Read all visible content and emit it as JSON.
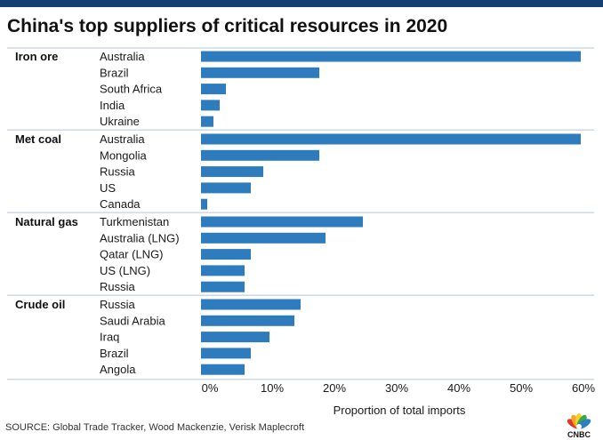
{
  "title": "China's top suppliers of critical resources in 2020",
  "source": "SOURCE: Global Trade Tracker, Wood Mackenzie, Verisk Maplecroft",
  "logo": {
    "icon": "peacock-icon",
    "text": "CNBC"
  },
  "colors": {
    "bar": "#2e7bbd",
    "divider": "#b8c4d6",
    "topbar": "#163f74"
  },
  "chart_data": {
    "type": "bar",
    "orientation": "horizontal",
    "title": "China's top suppliers of critical resources in 2020",
    "xlabel": "Proportion of total imports",
    "xlim": [
      0,
      62
    ],
    "xticks": [
      0,
      10,
      20,
      30,
      40,
      50,
      60
    ],
    "xtick_labels": [
      "0%",
      "10%",
      "20%",
      "30%",
      "40%",
      "50%",
      "60%"
    ],
    "groups": [
      {
        "name": "Iron ore",
        "items": [
          {
            "label": "Australia",
            "value": 61
          },
          {
            "label": "Brazil",
            "value": 19
          },
          {
            "label": "South Africa",
            "value": 4
          },
          {
            "label": "India",
            "value": 3
          },
          {
            "label": "Ukraine",
            "value": 2
          }
        ]
      },
      {
        "name": "Met coal",
        "items": [
          {
            "label": "Australia",
            "value": 61
          },
          {
            "label": "Mongolia",
            "value": 19
          },
          {
            "label": "Russia",
            "value": 10
          },
          {
            "label": "US",
            "value": 8
          },
          {
            "label": "Canada",
            "value": 1
          }
        ]
      },
      {
        "name": "Natural gas",
        "items": [
          {
            "label": "Turkmenistan",
            "value": 26
          },
          {
            "label": "Australia (LNG)",
            "value": 20
          },
          {
            "label": "Qatar (LNG)",
            "value": 8
          },
          {
            "label": "US (LNG)",
            "value": 7
          },
          {
            "label": "Russia",
            "value": 7
          }
        ]
      },
      {
        "name": "Crude oil",
        "items": [
          {
            "label": "Russia",
            "value": 16
          },
          {
            "label": "Saudi Arabia",
            "value": 15
          },
          {
            "label": "Iraq",
            "value": 11
          },
          {
            "label": "Brazil",
            "value": 8
          },
          {
            "label": "Angola",
            "value": 7
          }
        ]
      }
    ]
  }
}
